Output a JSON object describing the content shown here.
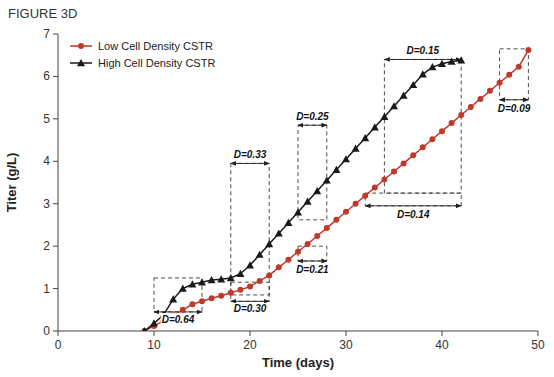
{
  "chart_data": {
    "type": "line",
    "title": "FIGURE 3D",
    "x_label": "Time (days)",
    "y_label": "Titer (g/L)",
    "xlim": [
      0,
      50
    ],
    "ylim": [
      0,
      7
    ],
    "xticks": [
      0,
      10,
      20,
      30,
      40,
      50
    ],
    "yticks": [
      0,
      1,
      2,
      3,
      4,
      5,
      6,
      7
    ],
    "grid": false,
    "legend": "upper left",
    "series": [
      {
        "name": "Low Cell Density CSTR",
        "color": "#C0392B",
        "marker": "circle",
        "line_style": "solid",
        "x": [
          9,
          10,
          11,
          12,
          13,
          14,
          15,
          16,
          17,
          18,
          19,
          20,
          21,
          22,
          23,
          24,
          25,
          26,
          27,
          28,
          29,
          30,
          31,
          32,
          33,
          34,
          35,
          36,
          37,
          38,
          39,
          40,
          41,
          42,
          43,
          44,
          45,
          46,
          47,
          48,
          49
        ],
        "values": [
          0.0,
          0.12,
          0.24,
          0.37,
          0.5,
          0.63,
          0.7,
          0.77,
          0.83,
          0.9,
          0.97,
          1.05,
          1.18,
          1.31,
          1.5,
          1.68,
          1.87,
          2.05,
          2.24,
          2.43,
          2.62,
          2.81,
          3.0,
          3.19,
          3.38,
          3.57,
          3.76,
          3.95,
          4.14,
          4.33,
          4.52,
          4.71,
          4.9,
          5.09,
          5.28,
          5.47,
          5.66,
          5.85,
          6.04,
          6.23,
          6.62
        ]
      },
      {
        "name": "High Cell Density CSTR",
        "color": "#1a1a1a",
        "marker": "triangle",
        "line_style": "solid",
        "x": [
          9,
          10,
          11,
          12,
          13,
          14,
          15,
          16,
          17,
          18,
          19,
          20,
          21,
          22,
          23,
          24,
          25,
          26,
          27,
          28,
          29,
          30,
          31,
          32,
          33,
          34,
          35,
          36,
          37,
          38,
          39,
          40,
          41,
          42
        ],
        "values": [
          0.0,
          0.18,
          0.38,
          0.75,
          1.0,
          1.1,
          1.15,
          1.2,
          1.22,
          1.25,
          1.35,
          1.55,
          1.8,
          2.05,
          2.3,
          2.55,
          2.8,
          3.05,
          3.3,
          3.55,
          3.8,
          4.05,
          4.3,
          4.55,
          4.8,
          5.05,
          5.3,
          5.55,
          5.8,
          6.05,
          6.22,
          6.3,
          6.35,
          6.38
        ]
      }
    ],
    "annotations": [
      {
        "label": "D=0.64",
        "x1": 10,
        "x2": 15,
        "y_top": 1.25,
        "y_bot": 0.45,
        "text_x": 12.5,
        "text_y": 0.28,
        "side": "bottom"
      },
      {
        "label": "D=0.33",
        "x1": 18,
        "x2": 22,
        "y_top": 3.95,
        "y_bot": 0.85,
        "text_x": 20,
        "text_y": 4.15,
        "side": "top"
      },
      {
        "label": "D=0.30",
        "x1": 18,
        "x2": 22,
        "y_top": 1.15,
        "y_bot": 0.7,
        "text_x": 20,
        "text_y": 0.52,
        "side": "bottom"
      },
      {
        "label": "D=0.25",
        "x1": 25,
        "x2": 28,
        "y_top": 4.85,
        "y_bot": 2.62,
        "text_x": 26.5,
        "text_y": 5.05,
        "side": "top"
      },
      {
        "label": "D=0.21",
        "x1": 25,
        "x2": 28,
        "y_top": 2.0,
        "y_bot": 1.65,
        "text_x": 26.5,
        "text_y": 1.45,
        "side": "bottom"
      },
      {
        "label": "D=0.15",
        "x1": 34,
        "x2": 42,
        "y_top": 6.4,
        "y_bot": 3.25,
        "text_x": 38,
        "text_y": 6.6,
        "side": "top"
      },
      {
        "label": "D=0.14",
        "x1": 32,
        "x2": 42,
        "y_top": 3.25,
        "y_bot": 2.95,
        "text_x": 37,
        "text_y": 2.75,
        "side": "bottom"
      },
      {
        "label": "D=0.09",
        "x1": 46,
        "x2": 49,
        "y_top": 6.65,
        "y_bot": 5.45,
        "text_x": 47.5,
        "text_y": 5.25,
        "side": "bottom"
      }
    ]
  }
}
